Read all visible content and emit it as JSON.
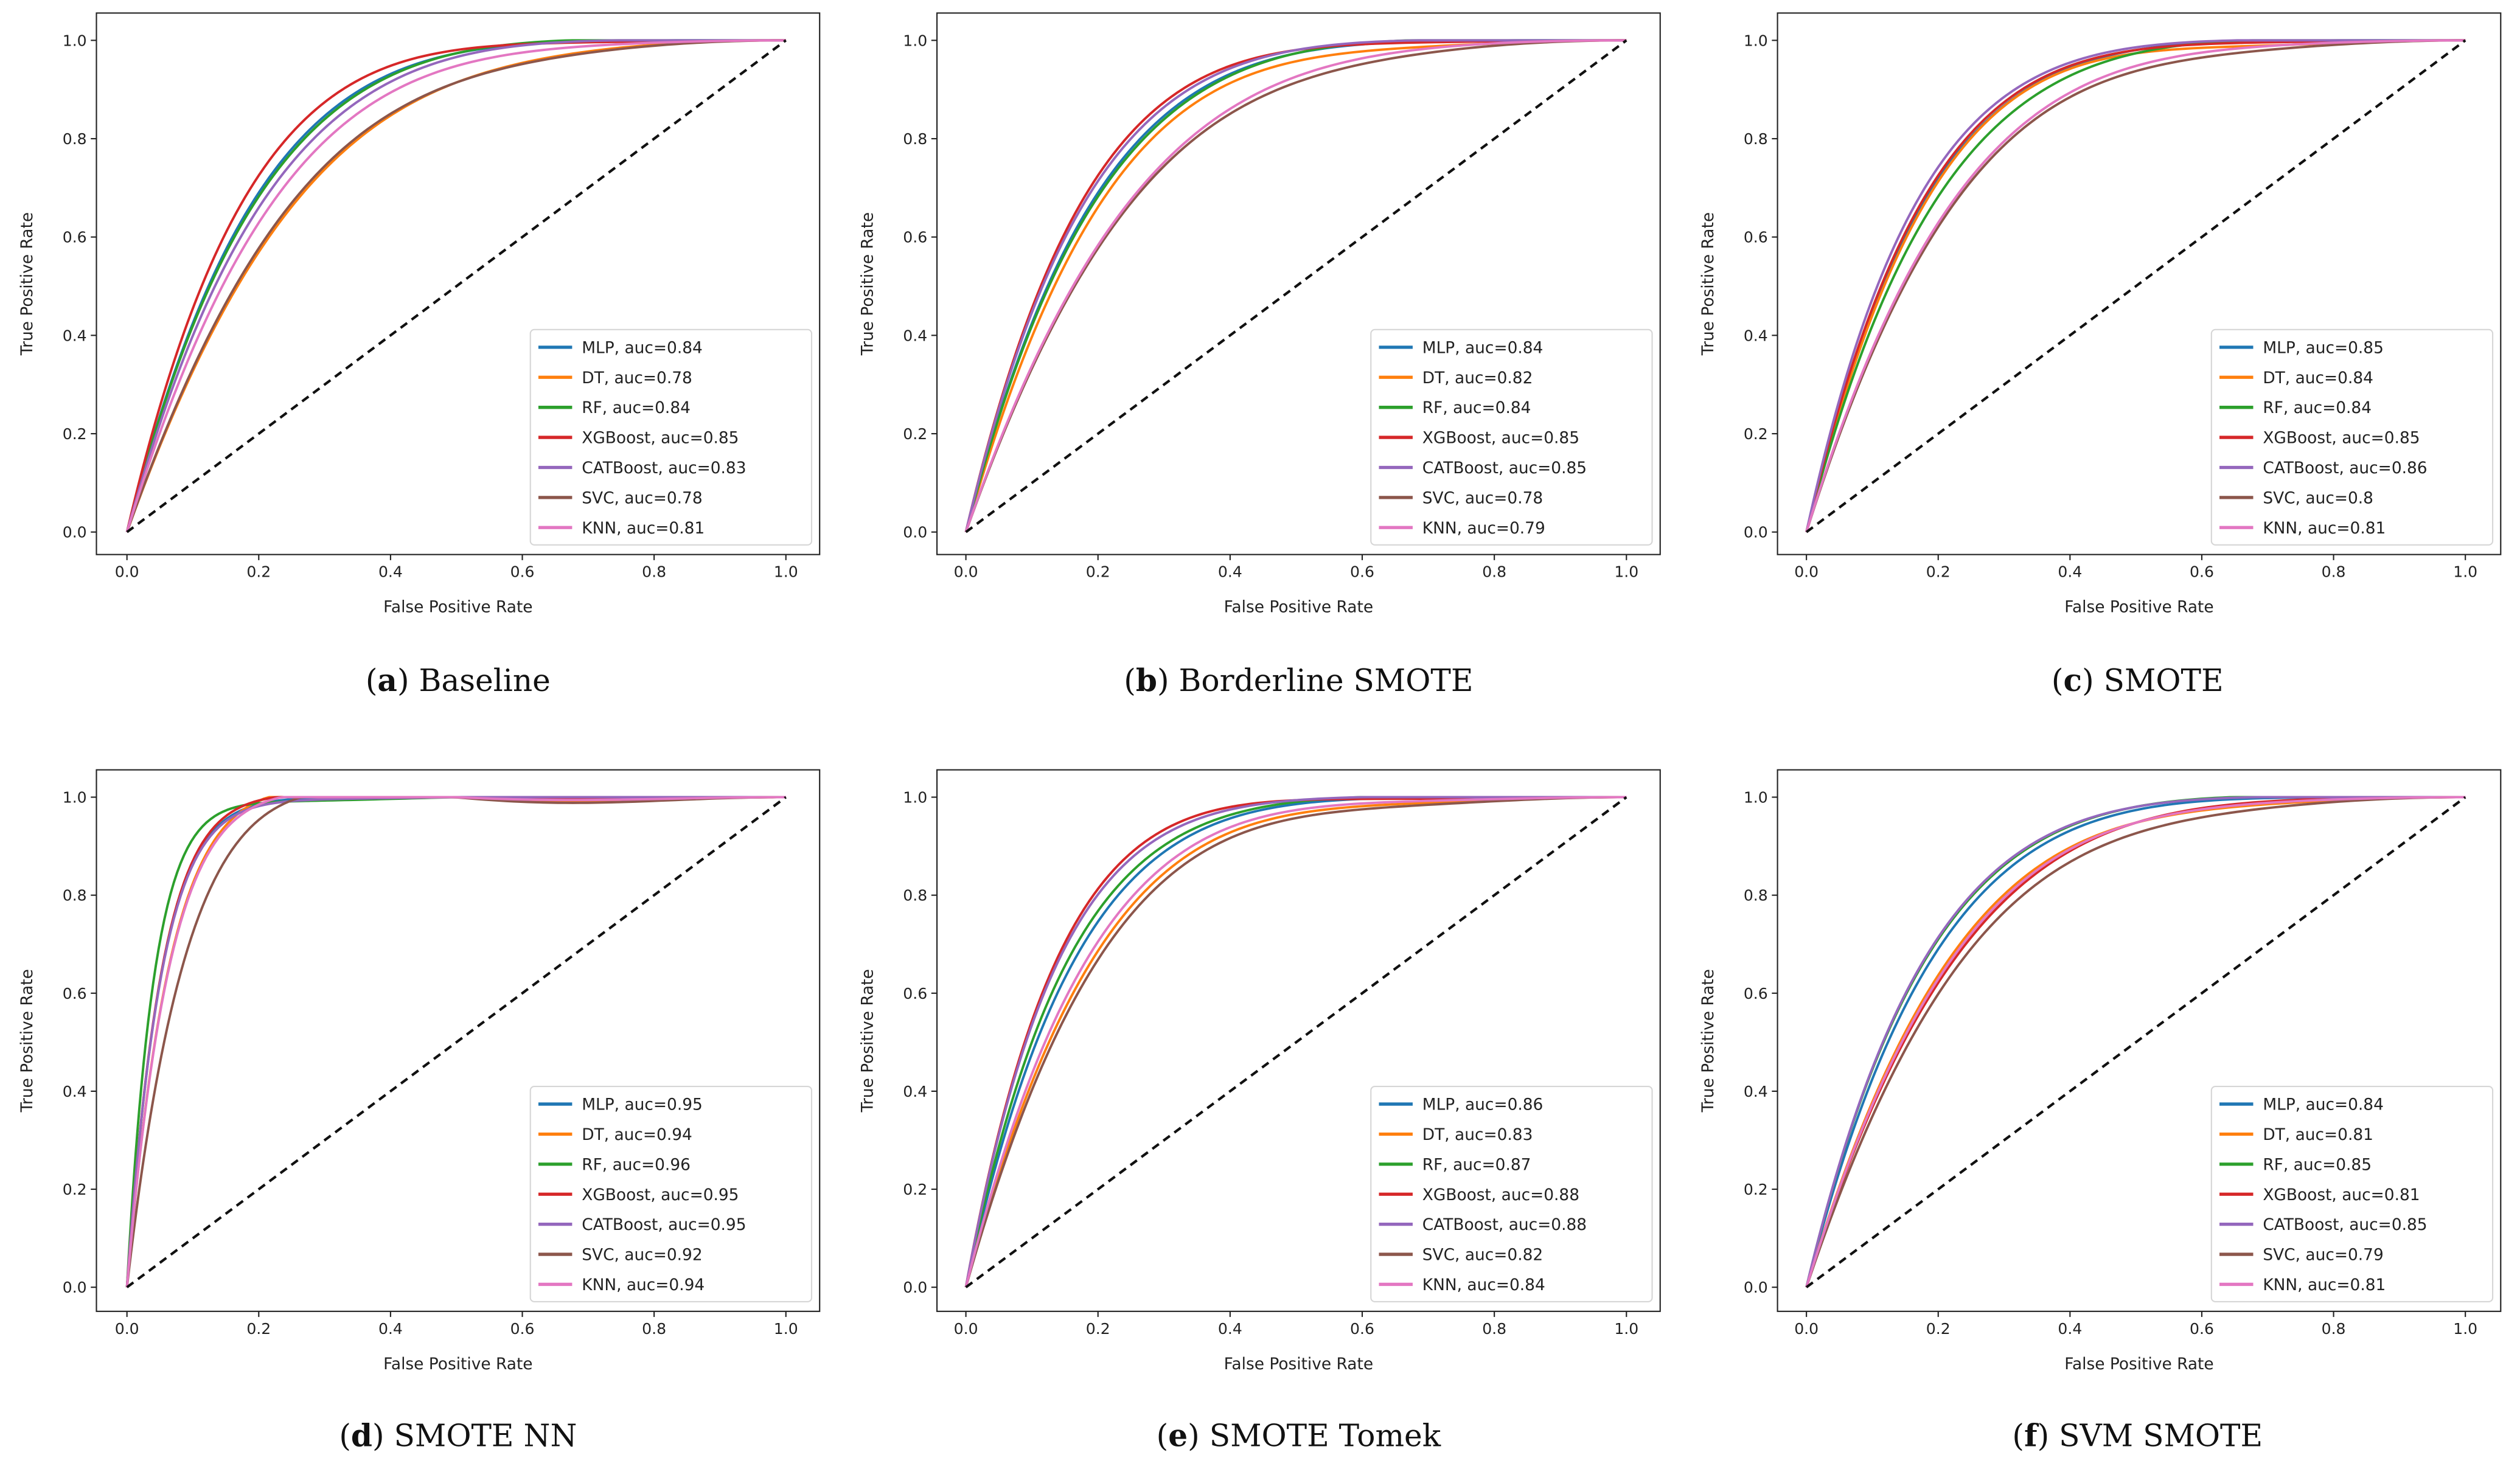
{
  "chart_data": [
    {
      "type": "line",
      "panel": "a",
      "caption": "Baseline",
      "xlabel": "False Positive Rate",
      "ylabel": "True Positive Rate",
      "xlim": [
        0,
        1
      ],
      "ylim": [
        0,
        1
      ],
      "xticks": [
        "0.0",
        "0.2",
        "0.4",
        "0.6",
        "0.8",
        "1.0"
      ],
      "yticks": [
        "0.0",
        "0.2",
        "0.4",
        "0.6",
        "0.8",
        "1.0"
      ],
      "legend": "lower-right",
      "chance_line": true,
      "series": [
        {
          "name": "MLP",
          "auc": 0.84,
          "label": "MLP, auc=0.84"
        },
        {
          "name": "DT",
          "auc": 0.78,
          "label": "DT, auc=0.78"
        },
        {
          "name": "RF",
          "auc": 0.84,
          "label": "RF, auc=0.84"
        },
        {
          "name": "XGBoost",
          "auc": 0.85,
          "label": "XGBoost, auc=0.85"
        },
        {
          "name": "CATBoost",
          "auc": 0.83,
          "label": "CATBoost, auc=0.83"
        },
        {
          "name": "SVC",
          "auc": 0.78,
          "label": "SVC, auc=0.78"
        },
        {
          "name": "KNN",
          "auc": 0.81,
          "label": "KNN, auc=0.81"
        }
      ]
    },
    {
      "type": "line",
      "panel": "b",
      "caption": "Borderline SMOTE",
      "xlabel": "False Positive Rate",
      "ylabel": "True Positive Rate",
      "xlim": [
        0,
        1
      ],
      "ylim": [
        0,
        1
      ],
      "xticks": [
        "0.0",
        "0.2",
        "0.4",
        "0.6",
        "0.8",
        "1.0"
      ],
      "yticks": [
        "0.0",
        "0.2",
        "0.4",
        "0.6",
        "0.8",
        "1.0"
      ],
      "legend": "lower-right",
      "chance_line": true,
      "series": [
        {
          "name": "MLP",
          "auc": 0.84,
          "label": "MLP, auc=0.84"
        },
        {
          "name": "DT",
          "auc": 0.82,
          "label": "DT, auc=0.82"
        },
        {
          "name": "RF",
          "auc": 0.84,
          "label": "RF, auc=0.84"
        },
        {
          "name": "XGBoost",
          "auc": 0.85,
          "label": "XGBoost, auc=0.85"
        },
        {
          "name": "CATBoost",
          "auc": 0.85,
          "label": "CATBoost, auc=0.85"
        },
        {
          "name": "SVC",
          "auc": 0.78,
          "label": "SVC, auc=0.78"
        },
        {
          "name": "KNN",
          "auc": 0.79,
          "label": "KNN, auc=0.79"
        }
      ]
    },
    {
      "type": "line",
      "panel": "c",
      "caption": "SMOTE",
      "xlabel": "False Positive Rate",
      "ylabel": "True Positive Rate",
      "xlim": [
        0,
        1
      ],
      "ylim": [
        0,
        1
      ],
      "xticks": [
        "0.0",
        "0.2",
        "0.4",
        "0.6",
        "0.8",
        "1.0"
      ],
      "yticks": [
        "0.0",
        "0.2",
        "0.4",
        "0.6",
        "0.8",
        "1.0"
      ],
      "legend": "lower-right",
      "chance_line": true,
      "series": [
        {
          "name": "MLP",
          "auc": 0.85,
          "label": "MLP, auc=0.85"
        },
        {
          "name": "DT",
          "auc": 0.84,
          "label": "DT, auc=0.84"
        },
        {
          "name": "RF",
          "auc": 0.84,
          "label": "RF, auc=0.84"
        },
        {
          "name": "XGBoost",
          "auc": 0.85,
          "label": "XGBoost, auc=0.85"
        },
        {
          "name": "CATBoost",
          "auc": 0.86,
          "label": "CATBoost, auc=0.86"
        },
        {
          "name": "SVC",
          "auc": 0.8,
          "label": "SVC, auc=0.8"
        },
        {
          "name": "KNN",
          "auc": 0.81,
          "label": "KNN, auc=0.81"
        }
      ]
    },
    {
      "type": "line",
      "panel": "d",
      "caption": "SMOTE NN",
      "xlabel": "False Positive Rate",
      "ylabel": "True Positive Rate",
      "xlim": [
        0,
        1
      ],
      "ylim": [
        0,
        1
      ],
      "xticks": [
        "0.0",
        "0.2",
        "0.4",
        "0.6",
        "0.8",
        "1.0"
      ],
      "yticks": [
        "0.0",
        "0.2",
        "0.4",
        "0.6",
        "0.8",
        "1.0"
      ],
      "legend": "lower-right",
      "chance_line": true,
      "series": [
        {
          "name": "MLP",
          "auc": 0.95,
          "label": "MLP, auc=0.95"
        },
        {
          "name": "DT",
          "auc": 0.94,
          "label": "DT, auc=0.94"
        },
        {
          "name": "RF",
          "auc": 0.96,
          "label": "RF, auc=0.96"
        },
        {
          "name": "XGBoost",
          "auc": 0.95,
          "label": "XGBoost, auc=0.95"
        },
        {
          "name": "CATBoost",
          "auc": 0.95,
          "label": "CATBoost, auc=0.95"
        },
        {
          "name": "SVC",
          "auc": 0.92,
          "label": "SVC, auc=0.92"
        },
        {
          "name": "KNN",
          "auc": 0.94,
          "label": "KNN, auc=0.94"
        }
      ]
    },
    {
      "type": "line",
      "panel": "e",
      "caption": "SMOTE Tomek",
      "xlabel": "False Positive Rate",
      "ylabel": "True Positive Rate",
      "xlim": [
        0,
        1
      ],
      "ylim": [
        0,
        1
      ],
      "xticks": [
        "0.0",
        "0.2",
        "0.4",
        "0.6",
        "0.8",
        "1.0"
      ],
      "yticks": [
        "0.0",
        "0.2",
        "0.4",
        "0.6",
        "0.8",
        "1.0"
      ],
      "legend": "lower-right",
      "chance_line": true,
      "series": [
        {
          "name": "MLP",
          "auc": 0.86,
          "label": "MLP, auc=0.86"
        },
        {
          "name": "DT",
          "auc": 0.83,
          "label": "DT, auc=0.83"
        },
        {
          "name": "RF",
          "auc": 0.87,
          "label": "RF, auc=0.87"
        },
        {
          "name": "XGBoost",
          "auc": 0.88,
          "label": "XGBoost, auc=0.88"
        },
        {
          "name": "CATBoost",
          "auc": 0.88,
          "label": "CATBoost, auc=0.88"
        },
        {
          "name": "SVC",
          "auc": 0.82,
          "label": "SVC, auc=0.82"
        },
        {
          "name": "KNN",
          "auc": 0.84,
          "label": "KNN, auc=0.84"
        }
      ]
    },
    {
      "type": "line",
      "panel": "f",
      "caption": "SVM SMOTE",
      "xlabel": "False Positive Rate",
      "ylabel": "True Positive Rate",
      "xlim": [
        0,
        1
      ],
      "ylim": [
        0,
        1
      ],
      "xticks": [
        "0.0",
        "0.2",
        "0.4",
        "0.6",
        "0.8",
        "1.0"
      ],
      "yticks": [
        "0.0",
        "0.2",
        "0.4",
        "0.6",
        "0.8",
        "1.0"
      ],
      "legend": "lower-right",
      "chance_line": true,
      "series": [
        {
          "name": "MLP",
          "auc": 0.84,
          "label": "MLP, auc=0.84"
        },
        {
          "name": "DT",
          "auc": 0.81,
          "label": "DT, auc=0.81"
        },
        {
          "name": "RF",
          "auc": 0.85,
          "label": "RF, auc=0.85"
        },
        {
          "name": "XGBoost",
          "auc": 0.81,
          "label": "XGBoost, auc=0.81"
        },
        {
          "name": "CATBoost",
          "auc": 0.85,
          "label": "CATBoost, auc=0.85"
        },
        {
          "name": "SVC",
          "auc": 0.79,
          "label": "SVC, auc=0.79"
        },
        {
          "name": "KNN",
          "auc": 0.81,
          "label": "KNN, auc=0.81"
        }
      ]
    }
  ],
  "colors": {
    "MLP": "#1f77b4",
    "DT": "#ff7f0e",
    "RF": "#2ca02c",
    "XGBoost": "#d62728",
    "CATBoost": "#9467bd",
    "SVC": "#8c564b",
    "KNN": "#e377c2",
    "chance": "#111111"
  }
}
